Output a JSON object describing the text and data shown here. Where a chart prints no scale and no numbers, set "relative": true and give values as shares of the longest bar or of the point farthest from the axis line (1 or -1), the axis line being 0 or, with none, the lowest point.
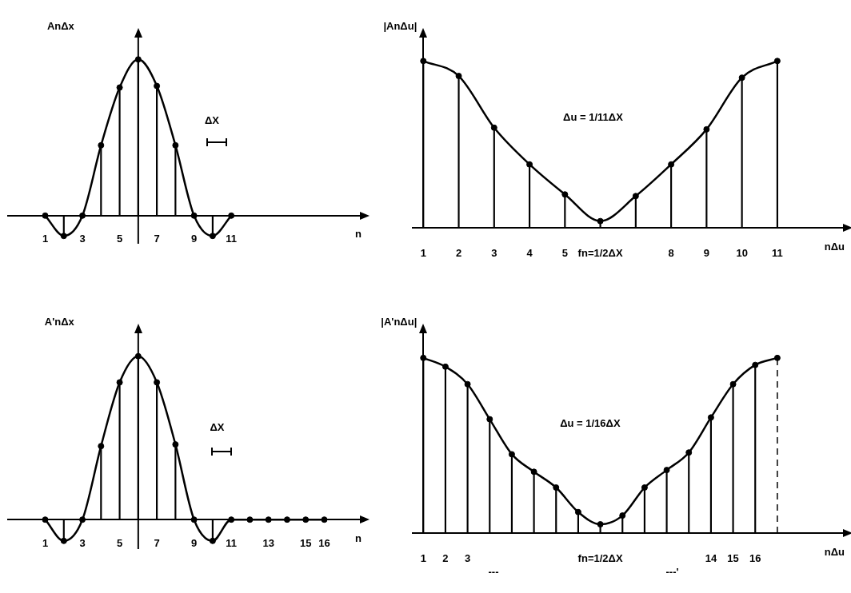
{
  "chart_data": [
    {
      "type": "lollipop",
      "xlabel": "n",
      "ylabel": "AnΔx",
      "relative": true,
      "ref_lines": [
        {
          "axis": "x",
          "value": 6,
          "color": "#000000"
        }
      ],
      "x": [
        1,
        2,
        3,
        4,
        5,
        6,
        7,
        8,
        9,
        10,
        11
      ],
      "xlim": [
        -1,
        18
      ],
      "xticks": [
        1,
        3,
        5,
        7,
        9,
        11
      ],
      "annotations": [
        "ΔX"
      ],
      "series": [
        {
          "type": "line",
          "color": "#000000",
          "values": [
            0,
            -0.13,
            0,
            0.45,
            0.82,
            1,
            0.83,
            0.45,
            0,
            -0.13,
            0
          ]
        },
        {
          "type": "lollipop",
          "marker": "circle",
          "color": "#000000",
          "values": [
            0,
            -0.13,
            0,
            0.45,
            0.82,
            1,
            0.83,
            0.45,
            0,
            -0.13,
            0
          ]
        }
      ]
    },
    {
      "type": "lollipop",
      "xlabel": "nΔu",
      "ylabel": "|AnΔu|",
      "relative": true,
      "categories": [
        "1",
        "2",
        "3",
        "4",
        "5",
        "fn=1/2ΔX",
        null,
        "8",
        "9",
        "10",
        "11"
      ],
      "annotations": [
        "Δu = 1/11ΔX"
      ],
      "series": [
        {
          "type": "line",
          "color": "#000000",
          "values": [
            1,
            0.91,
            0.6,
            0.38,
            0.2,
            0.04,
            0.19,
            0.38,
            0.59,
            0.9,
            1
          ]
        },
        {
          "type": "lollipop",
          "marker": "circle",
          "color": "#000000",
          "values": [
            1,
            0.91,
            0.6,
            0.38,
            0.2,
            0.04,
            0.19,
            0.38,
            0.59,
            0.9,
            1
          ]
        }
      ]
    },
    {
      "type": "lollipop",
      "xlabel": "n",
      "ylabel": "A'nΔx",
      "relative": true,
      "ref_lines": [
        {
          "axis": "x",
          "value": 6,
          "color": "#000000"
        }
      ],
      "x": [
        1,
        2,
        3,
        4,
        5,
        6,
        7,
        8,
        9,
        10,
        11,
        12,
        13,
        14,
        15,
        16
      ],
      "xlim": [
        -1,
        18
      ],
      "xticks": [
        1,
        3,
        5,
        7,
        9,
        11,
        13,
        15,
        16
      ],
      "annotations": [
        "ΔX"
      ],
      "series": [
        {
          "type": "line",
          "color": "#000000",
          "values": [
            0,
            -0.13,
            0,
            0.45,
            0.84,
            1,
            0.84,
            0.46,
            0,
            -0.13,
            0,
            0,
            0,
            0,
            0,
            0
          ]
        },
        {
          "type": "lollipop",
          "marker": "circle",
          "color": "#000000",
          "values": [
            0,
            -0.13,
            0,
            0.45,
            0.84,
            1,
            0.84,
            0.46,
            0,
            -0.13,
            0,
            0,
            0,
            0,
            0,
            0
          ]
        }
      ]
    },
    {
      "type": "lollipop",
      "xlabel": "nΔu",
      "ylabel": "|A'nΔu|",
      "relative": true,
      "categories": [
        "1",
        "2",
        "3",
        null,
        null,
        null,
        null,
        null,
        "fn=1/2ΔX",
        null,
        null,
        null,
        null,
        "14",
        "15",
        "16",
        null
      ],
      "annotations": [
        "Δu = 1/16ΔX",
        "---",
        "---'"
      ],
      "series": [
        {
          "type": "line",
          "color": "#000000",
          "values": [
            1,
            0.95,
            0.85,
            0.65,
            0.45,
            0.35,
            0.26,
            0.12,
            0.05,
            0.1,
            0.26,
            0.36,
            0.46,
            0.66,
            0.85,
            0.96,
            1
          ]
        },
        {
          "type": "lollipop",
          "marker": "circle",
          "color": "#000000",
          "values": [
            1,
            0.95,
            0.85,
            0.65,
            0.45,
            0.35,
            0.26,
            0.12,
            0.05,
            0.1,
            0.26,
            0.36,
            0.46,
            0.66,
            0.85,
            0.96,
            null
          ]
        },
        {
          "type": "lollipop",
          "marker": "circle",
          "line_style": "dashed",
          "color": "#000000",
          "values": [
            null,
            null,
            null,
            null,
            null,
            null,
            null,
            null,
            null,
            null,
            null,
            null,
            null,
            null,
            null,
            null,
            1
          ]
        }
      ]
    }
  ]
}
